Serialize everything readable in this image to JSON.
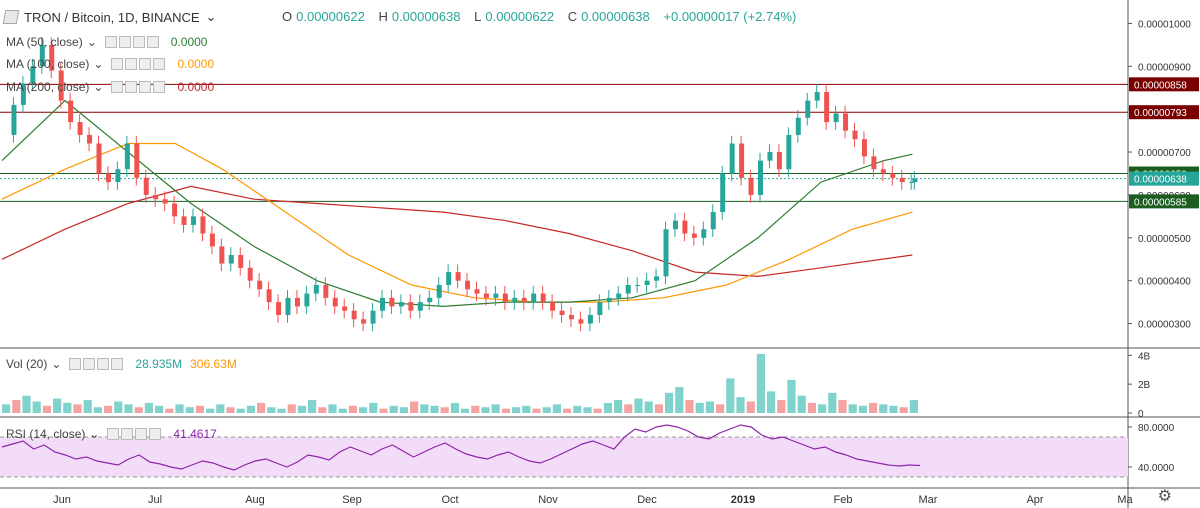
{
  "header": {
    "symbol": "TRON / Bitcoin, 1D, BINANCE",
    "o_label": "O",
    "o_value": "0.00000622",
    "h_label": "H",
    "h_value": "0.00000638",
    "l_label": "L",
    "l_value": "0.00000622",
    "c_label": "C",
    "c_value": "0.00000638",
    "change": "+0.00000017 (+2.74%)"
  },
  "legends": {
    "ma50": {
      "label": "MA (50, close)",
      "value": "0.0000",
      "color": "#2e7d32"
    },
    "ma100": {
      "label": "MA (100, close)",
      "value": "0.0000",
      "color": "#ff9800"
    },
    "ma200": {
      "label": "MA (200, close)",
      "value": "0.0000",
      "color": "#c62828"
    },
    "vol": {
      "label": "Vol (20)",
      "value1": "28.935M",
      "value2": "306.63M"
    },
    "rsi": {
      "label": "RSI (14, close)",
      "value": "41.4617"
    }
  },
  "colors": {
    "up": "#26a69a",
    "down": "#ef5350",
    "rsi": "#8e24aa",
    "rsi_band": "#f3dcf7",
    "level_red": "#8b0000",
    "level_green": "#1b5e20"
  },
  "chart_data": [
    {
      "type": "candlestick",
      "title": "TRON / Bitcoin, 1D, BINANCE",
      "ylim": [
        2.5e-06,
        1.05e-05
      ],
      "x_ticks": [
        "Jun",
        "Jul",
        "Aug",
        "Sep",
        "Oct",
        "Nov",
        "Dec",
        "2019",
        "Feb",
        "Mar",
        "Apr",
        "Ma"
      ],
      "y_ticks": [
        "0.00001000",
        "0.00000900",
        "0.00000800",
        "0.00000700",
        "0.00000600",
        "0.00000500",
        "0.00000400",
        "0.00000300"
      ],
      "price_close": [
        [
          0,
          7.4
        ],
        [
          3,
          8.1
        ],
        [
          6,
          8.6
        ],
        [
          9,
          9.0
        ],
        [
          12,
          9.5
        ],
        [
          15,
          8.9
        ],
        [
          18,
          8.2
        ],
        [
          21,
          7.7
        ],
        [
          24,
          7.4
        ],
        [
          27,
          7.2
        ],
        [
          30,
          6.5
        ],
        [
          33,
          6.3
        ],
        [
          36,
          6.6
        ],
        [
          39,
          7.2
        ],
        [
          42,
          6.4
        ],
        [
          45,
          6.0
        ],
        [
          48,
          5.9
        ],
        [
          51,
          5.8
        ],
        [
          54,
          5.5
        ],
        [
          57,
          5.3
        ],
        [
          60,
          5.5
        ],
        [
          63,
          5.1
        ],
        [
          66,
          4.8
        ],
        [
          69,
          4.4
        ],
        [
          72,
          4.6
        ],
        [
          75,
          4.3
        ],
        [
          78,
          4.0
        ],
        [
          81,
          3.8
        ],
        [
          84,
          3.5
        ],
        [
          87,
          3.2
        ],
        [
          90,
          3.6
        ],
        [
          93,
          3.4
        ],
        [
          96,
          3.7
        ],
        [
          99,
          3.9
        ],
        [
          102,
          3.6
        ],
        [
          105,
          3.4
        ],
        [
          108,
          3.3
        ],
        [
          111,
          3.1
        ],
        [
          114,
          3.0
        ],
        [
          117,
          3.3
        ],
        [
          120,
          3.6
        ],
        [
          123,
          3.4
        ],
        [
          126,
          3.5
        ],
        [
          129,
          3.3
        ],
        [
          132,
          3.5
        ],
        [
          135,
          3.6
        ],
        [
          138,
          3.9
        ],
        [
          141,
          4.2
        ],
        [
          144,
          4.0
        ],
        [
          147,
          3.8
        ],
        [
          150,
          3.7
        ],
        [
          153,
          3.6
        ],
        [
          156,
          3.7
        ],
        [
          159,
          3.5
        ],
        [
          162,
          3.6
        ],
        [
          165,
          3.5
        ],
        [
          168,
          3.7
        ],
        [
          171,
          3.5
        ],
        [
          174,
          3.3
        ],
        [
          177,
          3.2
        ],
        [
          180,
          3.1
        ],
        [
          183,
          3.0
        ],
        [
          186,
          3.2
        ],
        [
          189,
          3.5
        ],
        [
          192,
          3.6
        ],
        [
          195,
          3.7
        ],
        [
          198,
          3.9
        ],
        [
          201,
          3.9
        ],
        [
          204,
          4.0
        ],
        [
          207,
          4.1
        ],
        [
          210,
          5.2
        ],
        [
          213,
          5.4
        ],
        [
          216,
          5.1
        ],
        [
          219,
          5.0
        ],
        [
          222,
          5.2
        ],
        [
          225,
          5.6
        ],
        [
          228,
          6.5
        ],
        [
          231,
          7.2
        ],
        [
          234,
          6.4
        ],
        [
          237,
          6.0
        ],
        [
          240,
          6.8
        ],
        [
          243,
          7.0
        ],
        [
          246,
          6.6
        ],
        [
          249,
          7.4
        ],
        [
          252,
          7.8
        ],
        [
          255,
          8.2
        ],
        [
          258,
          8.4
        ],
        [
          261,
          7.7
        ],
        [
          264,
          7.9
        ],
        [
          267,
          7.5
        ],
        [
          270,
          7.3
        ],
        [
          273,
          6.9
        ],
        [
          276,
          6.6
        ],
        [
          279,
          6.5
        ],
        [
          282,
          6.4
        ],
        [
          285,
          6.3
        ],
        [
          288,
          6.3
        ],
        [
          289,
          6.38
        ]
      ],
      "ma50": [
        [
          0,
          6.8
        ],
        [
          20,
          8.2
        ],
        [
          40,
          7.0
        ],
        [
          60,
          5.8
        ],
        [
          80,
          4.8
        ],
        [
          100,
          4.0
        ],
        [
          120,
          3.5
        ],
        [
          140,
          3.4
        ],
        [
          160,
          3.5
        ],
        [
          180,
          3.5
        ],
        [
          200,
          3.6
        ],
        [
          220,
          4.0
        ],
        [
          240,
          5.0
        ],
        [
          260,
          6.3
        ],
        [
          280,
          6.8
        ],
        [
          289,
          6.95
        ]
      ],
      "ma100": [
        [
          0,
          5.9
        ],
        [
          20,
          6.6
        ],
        [
          40,
          7.2
        ],
        [
          55,
          7.2
        ],
        [
          70,
          6.6
        ],
        [
          90,
          5.6
        ],
        [
          110,
          4.6
        ],
        [
          130,
          3.9
        ],
        [
          150,
          3.6
        ],
        [
          170,
          3.5
        ],
        [
          190,
          3.5
        ],
        [
          210,
          3.6
        ],
        [
          230,
          3.9
        ],
        [
          250,
          4.5
        ],
        [
          270,
          5.2
        ],
        [
          289,
          5.6
        ]
      ],
      "ma200": [
        [
          0,
          4.5
        ],
        [
          20,
          5.2
        ],
        [
          40,
          5.8
        ],
        [
          60,
          6.2
        ],
        [
          80,
          5.9
        ],
        [
          100,
          5.8
        ],
        [
          120,
          5.7
        ],
        [
          140,
          5.6
        ],
        [
          160,
          5.4
        ],
        [
          180,
          5.1
        ],
        [
          200,
          4.7
        ],
        [
          220,
          4.2
        ],
        [
          240,
          4.1
        ],
        [
          260,
          4.3
        ],
        [
          289,
          4.6
        ]
      ],
      "levels": [
        {
          "value": 8.58,
          "label": "0.00000858",
          "kind": "red"
        },
        {
          "value": 7.93,
          "label": "0.00000793",
          "kind": "red"
        },
        {
          "value": 6.5,
          "label": "0.00000650",
          "kind": "green"
        },
        {
          "value": 6.38,
          "label": "0.00000638",
          "kind": "teal"
        },
        {
          "value": 5.85,
          "label": "0.00000585",
          "kind": "green"
        }
      ]
    },
    {
      "type": "bar",
      "title": "Vol (20)",
      "y_ticks": [
        "4B",
        "2B",
        "0"
      ],
      "ylim": [
        0,
        4.3
      ],
      "note_values": "volume in billions, sampled",
      "volume": [
        0.6,
        0.9,
        1.2,
        0.8,
        0.5,
        1.0,
        0.7,
        0.6,
        0.9,
        0.4,
        0.5,
        0.8,
        0.6,
        0.4,
        0.7,
        0.5,
        0.3,
        0.6,
        0.4,
        0.5,
        0.3,
        0.6,
        0.4,
        0.3,
        0.5,
        0.7,
        0.4,
        0.3,
        0.6,
        0.5,
        0.9,
        0.4,
        0.6,
        0.3,
        0.5,
        0.4,
        0.7,
        0.3,
        0.5,
        0.4,
        0.8,
        0.6,
        0.5,
        0.4,
        0.7,
        0.3,
        0.5,
        0.4,
        0.6,
        0.3,
        0.4,
        0.5,
        0.3,
        0.4,
        0.6,
        0.3,
        0.5,
        0.4,
        0.3,
        0.7,
        0.9,
        0.6,
        1.0,
        0.8,
        0.6,
        1.4,
        1.8,
        0.9,
        0.7,
        0.8,
        0.6,
        2.4,
        1.1,
        0.8,
        4.1,
        1.5,
        0.9,
        2.3,
        1.2,
        0.7,
        0.6,
        1.4,
        0.9,
        0.6,
        0.5,
        0.7,
        0.6,
        0.5,
        0.4,
        0.9
      ]
    },
    {
      "type": "line",
      "title": "RSI (14, close)",
      "y_ticks": [
        "80.0000",
        "40.0000"
      ],
      "ylim": [
        20,
        85
      ],
      "band": [
        30,
        70
      ],
      "rsi": [
        60,
        63,
        66,
        58,
        62,
        55,
        52,
        48,
        50,
        46,
        44,
        42,
        48,
        52,
        45,
        43,
        40,
        38,
        42,
        46,
        44,
        40,
        37,
        42,
        46,
        48,
        44,
        40,
        45,
        52,
        50,
        47,
        55,
        60,
        56,
        52,
        58,
        62,
        56,
        50,
        55,
        60,
        64,
        58,
        53,
        50,
        48,
        52,
        55,
        50,
        46,
        44,
        48,
        53,
        58,
        63,
        66,
        62,
        58,
        70,
        78,
        75,
        80,
        82,
        80,
        76,
        70,
        68,
        74,
        78,
        82,
        80,
        72,
        68,
        70,
        66,
        62,
        58,
        60,
        55,
        52,
        48,
        46,
        44,
        42,
        41,
        42,
        41.5
      ]
    }
  ]
}
